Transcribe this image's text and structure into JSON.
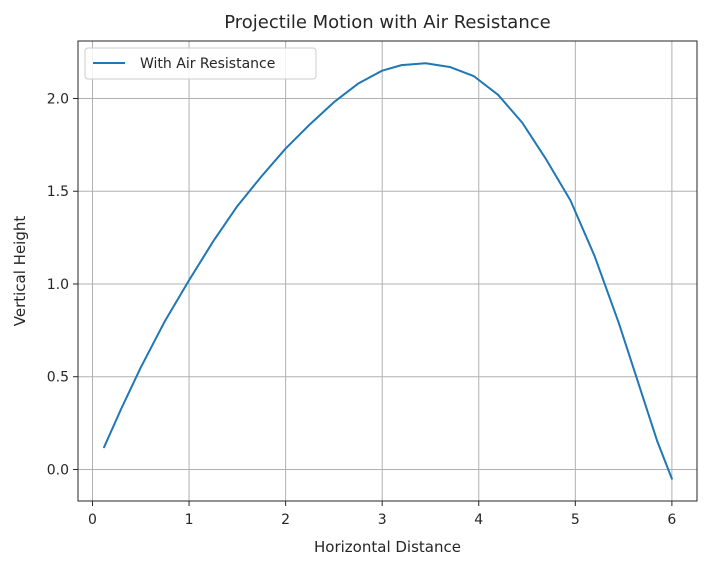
{
  "chart_data": {
    "type": "line",
    "title": "Projectile Motion with Air Resistance",
    "xlabel": "Horizontal Distance",
    "ylabel": "Vertical Height",
    "xlim": [
      -0.15,
      6.26
    ],
    "ylim": [
      -0.17,
      2.31
    ],
    "xticks": [
      0,
      1,
      2,
      3,
      4,
      5,
      6
    ],
    "xtick_labels": [
      "0",
      "1",
      "2",
      "3",
      "4",
      "5",
      "6"
    ],
    "yticks": [
      0.0,
      0.5,
      1.0,
      1.5,
      2.0
    ],
    "ytick_labels": [
      "0.0",
      "0.5",
      "1.0",
      "1.5",
      "2.0"
    ],
    "grid": true,
    "legend_position": "top-left",
    "series": [
      {
        "name": "With Air Resistance",
        "color": "#1f77b4",
        "x": [
          0.12,
          0.3,
          0.5,
          0.75,
          1.0,
          1.25,
          1.5,
          1.75,
          2.0,
          2.25,
          2.5,
          2.75,
          3.0,
          3.2,
          3.45,
          3.7,
          3.95,
          4.2,
          4.45,
          4.7,
          4.95,
          5.2,
          5.45,
          5.7,
          5.85,
          6.0
        ],
        "y": [
          0.12,
          0.33,
          0.55,
          0.8,
          1.02,
          1.23,
          1.42,
          1.58,
          1.73,
          1.86,
          1.98,
          2.08,
          2.15,
          2.18,
          2.19,
          2.17,
          2.12,
          2.02,
          1.87,
          1.67,
          1.45,
          1.15,
          0.79,
          0.39,
          0.15,
          -0.05
        ]
      }
    ]
  }
}
